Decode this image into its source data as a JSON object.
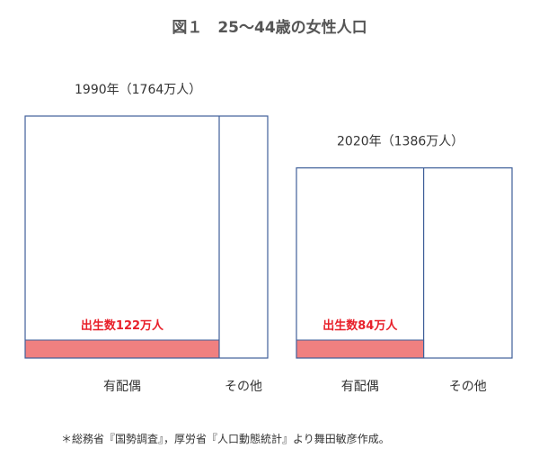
{
  "title": "図１　25〜44歳の女性人口",
  "source_note": "＊総務省『国勢調査』，厚労省『人口動態統計』より舞田敏彦作成。",
  "colors": {
    "frame": "#3f5f99",
    "births_fill": "#f08080",
    "births_text": "#e8202a",
    "text": "#333333",
    "title_text": "#555555"
  },
  "chart_data": {
    "type": "mosaic",
    "unit": "万人",
    "x_categories": [
      "有配偶",
      "その他"
    ],
    "panels": [
      {
        "header": "1990年（1764万人）",
        "year": 1990,
        "total_women": 1764,
        "married_share": 0.8,
        "births": 122,
        "births_label": "出生数122万人",
        "births_share_of_married": 0.086,
        "category_labels": [
          "有配偶",
          "その他"
        ]
      },
      {
        "header": "2020年（1386万人）",
        "year": 2020,
        "total_women": 1386,
        "married_share": 0.59,
        "births": 84,
        "births_label": "出生数84万人",
        "births_share_of_married": 0.093,
        "category_labels": [
          "有配偶",
          "その他"
        ]
      }
    ]
  }
}
